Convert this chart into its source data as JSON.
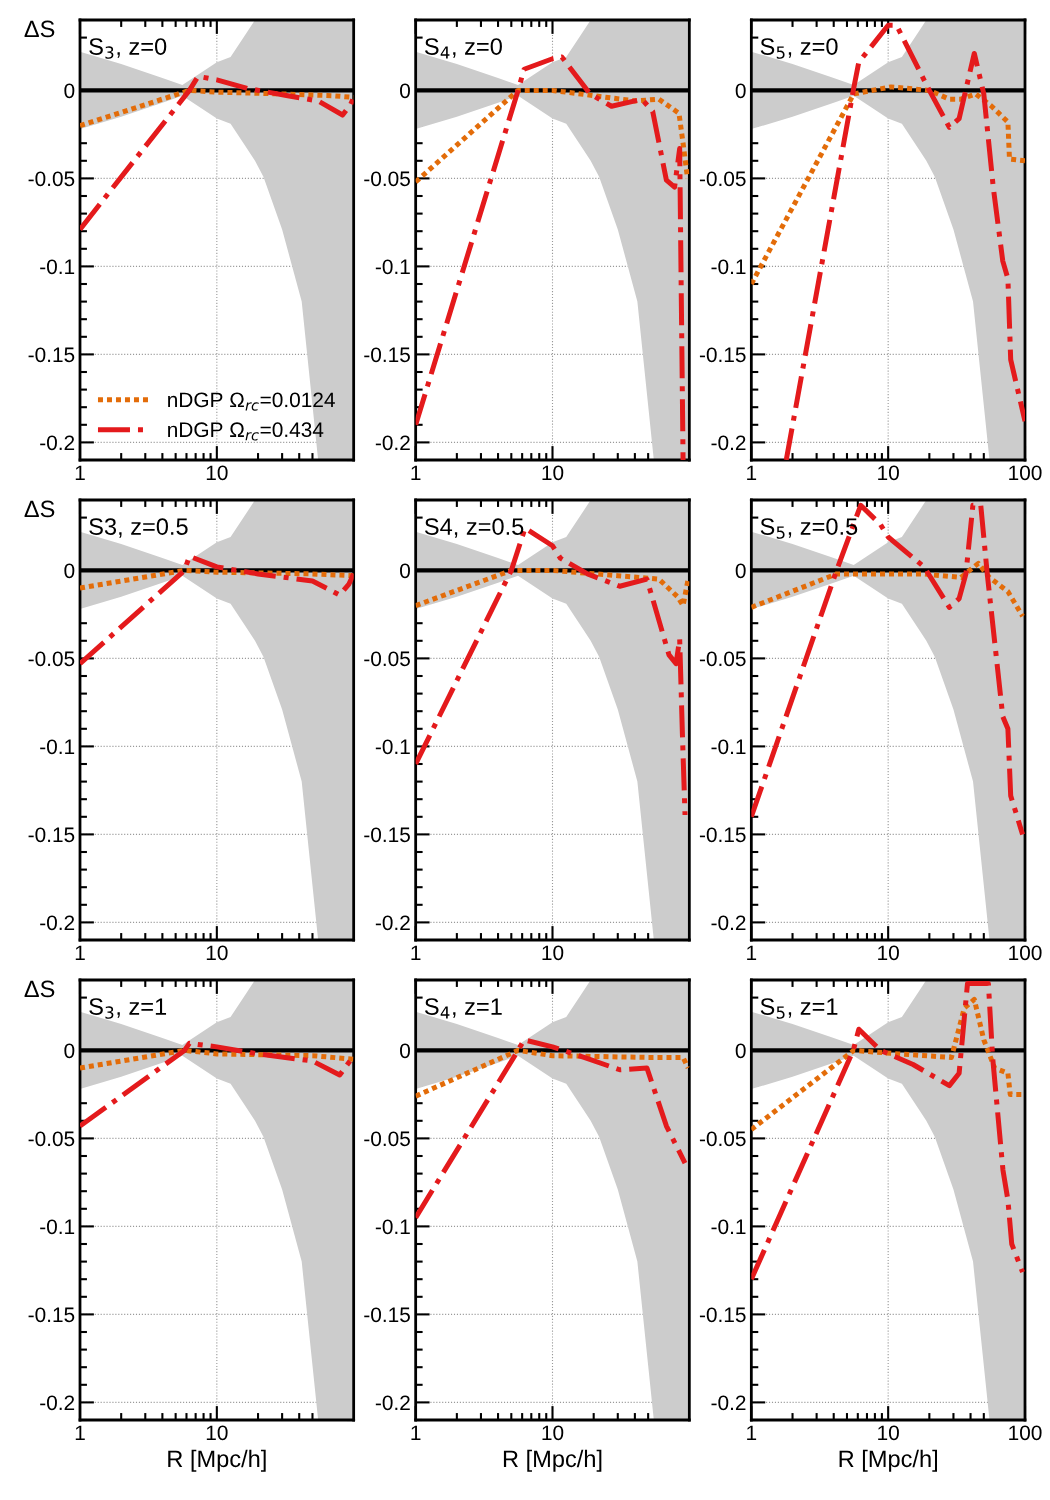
{
  "chart_data": [
    {
      "type": "line",
      "title": "S$_{3}$, z=0",
      "ylabel": "ΔS",
      "log": "x",
      "grid": true,
      "legend": "bottom",
      "xlim": [
        1,
        100
      ],
      "ylim": [
        -0.21,
        0.04
      ],
      "xticks": [
        1,
        10
      ],
      "yticks": [
        -0.2,
        -0.15,
        -0.1,
        -0.05,
        0
      ],
      "series": [
        {
          "color": "#000000",
          "line_style": "solid",
          "x": [
            1,
            2,
            4,
            5.6,
            7,
            10,
            12.6,
            16.6,
            19,
            21.9,
            30,
            41.7,
            55,
            100
          ],
          "values": [
            0,
            0,
            0,
            0,
            0,
            0,
            0,
            0,
            0,
            0,
            0,
            0,
            0,
            0
          ],
          "lower": [
            -0.022,
            -0.015,
            -0.007,
            -0.003,
            -0.008,
            -0.016,
            -0.019,
            -0.033,
            -0.04,
            -0.049,
            -0.079,
            -0.12,
            -0.21,
            -0.21
          ],
          "upper": [
            0.022,
            0.015,
            0.007,
            0.003,
            0.008,
            0.016,
            0.019,
            0.033,
            0.04,
            0.04,
            0.04,
            0.04,
            0.04,
            0.04
          ]
        },
        {
          "name": "nDGP Ω$_{rc}$=0.0124",
          "color": "#e36c09",
          "line_style": "dotted",
          "x": [
            1,
            6.3,
            10,
            30,
            70,
            100
          ],
          "values": [
            -0.02,
            0,
            -0.001,
            -0.002,
            -0.003,
            -0.004
          ]
        },
        {
          "name": "nDGP Ω$_{rc}$=0.434",
          "color": "#e41a1c",
          "line_style": "dashdot",
          "x": [
            1,
            6.3,
            7.3,
            10,
            17,
            33,
            55,
            83,
            95,
            100
          ],
          "values": [
            -0.079,
            0,
            0.008,
            0.006,
            0.001,
            -0.003,
            -0.006,
            -0.014,
            -0.008,
            -0.004
          ]
        }
      ]
    },
    {
      "type": "line",
      "title": "S$_{4}$, z=0",
      "log": "x",
      "grid": true,
      "xlim": [
        1,
        100
      ],
      "ylim": [
        -0.21,
        0.04
      ],
      "xticks": [
        1,
        10
      ],
      "yticks": [
        -0.2,
        -0.15,
        -0.1,
        -0.05,
        0
      ],
      "series": [
        {
          "color": "#000000",
          "line_style": "solid",
          "x": [
            1,
            2,
            4,
            5.6,
            7,
            10,
            12.6,
            16.6,
            19,
            21.9,
            30,
            41.7,
            55,
            100
          ],
          "values": [
            0,
            0,
            0,
            0,
            0,
            0,
            0,
            0,
            0,
            0,
            0,
            0,
            0,
            0
          ],
          "lower": [
            -0.022,
            -0.015,
            -0.007,
            -0.003,
            -0.008,
            -0.016,
            -0.019,
            -0.033,
            -0.04,
            -0.049,
            -0.079,
            -0.12,
            -0.21,
            -0.21
          ],
          "upper": [
            0.022,
            0.015,
            0.007,
            0.003,
            0.008,
            0.016,
            0.019,
            0.033,
            0.04,
            0.04,
            0.04,
            0.04,
            0.04,
            0.04
          ]
        },
        {
          "color": "#e36c09",
          "line_style": "dotted",
          "x": [
            1,
            5.6,
            10,
            20,
            40,
            60,
            84,
            90,
            97
          ],
          "values": [
            -0.052,
            0,
            0,
            -0.003,
            -0.006,
            -0.005,
            -0.013,
            -0.03,
            -0.05
          ]
        },
        {
          "color": "#e41a1c",
          "line_style": "dashdot",
          "x": [
            1,
            5.6,
            6.2,
            10,
            11.7,
            18.8,
            27,
            45,
            54,
            68,
            78,
            85,
            90
          ],
          "values": [
            -0.19,
            0,
            0.012,
            0.018,
            0.019,
            -0.002,
            -0.009,
            -0.005,
            -0.012,
            -0.051,
            -0.055,
            -0.033,
            -0.21
          ]
        }
      ]
    },
    {
      "type": "line",
      "title": "S$_{5}$, z=0",
      "log": "x",
      "grid": true,
      "xlim": [
        1,
        100
      ],
      "ylim": [
        -0.21,
        0.04
      ],
      "xticks": [
        1,
        10,
        100
      ],
      "yticks": [
        -0.2,
        -0.15,
        -0.1,
        -0.05,
        0
      ],
      "series": [
        {
          "color": "#000000",
          "line_style": "solid",
          "x": [
            1,
            2,
            4,
            5.6,
            7,
            10,
            12.6,
            16.6,
            19,
            21.9,
            30,
            41.7,
            55,
            100
          ],
          "values": [
            0,
            0,
            0,
            0,
            0,
            0,
            0,
            0,
            0,
            0,
            0,
            0,
            0,
            0
          ],
          "lower": [
            -0.022,
            -0.015,
            -0.007,
            -0.003,
            -0.008,
            -0.016,
            -0.019,
            -0.033,
            -0.04,
            -0.049,
            -0.079,
            -0.12,
            -0.21,
            -0.21
          ],
          "upper": [
            0.022,
            0.015,
            0.007,
            0.003,
            0.008,
            0.016,
            0.019,
            0.033,
            0.04,
            0.04,
            0.04,
            0.04,
            0.04,
            0.04
          ]
        },
        {
          "color": "#e36c09",
          "line_style": "dotted",
          "x": [
            1,
            5.6,
            10.5,
            20,
            28,
            34,
            43.6,
            57,
            75,
            77,
            100
          ],
          "values": [
            -0.11,
            -0.002,
            0.002,
            0,
            -0.005,
            -0.005,
            -0.002,
            -0.009,
            -0.018,
            -0.039,
            -0.04
          ]
        },
        {
          "color": "#e41a1c",
          "line_style": "dashdot",
          "x": [
            1.8,
            5.56,
            6.1,
            10,
            11.5,
            20,
            28,
            33,
            42.6,
            50,
            58.6,
            68.8,
            75,
            78.6,
            100
          ],
          "values": [
            -0.21,
            0,
            0.016,
            0.037,
            0.037,
            0,
            -0.021,
            -0.016,
            0.021,
            -0.002,
            -0.055,
            -0.097,
            -0.107,
            -0.153,
            -0.188
          ]
        }
      ]
    },
    {
      "type": "line",
      "title": "S3, z=0.5",
      "ylabel": "ΔS",
      "log": "x",
      "grid": true,
      "xlim": [
        1,
        100
      ],
      "ylim": [
        -0.21,
        0.04
      ],
      "xticks": [
        1,
        10
      ],
      "yticks": [
        -0.2,
        -0.15,
        -0.1,
        -0.05,
        0
      ],
      "series": [
        {
          "color": "#000000",
          "line_style": "solid",
          "x": [
            1,
            2,
            4,
            5.6,
            7,
            10,
            12.6,
            16.6,
            19,
            21.9,
            30,
            41.7,
            55,
            100
          ],
          "values": [
            0,
            0,
            0,
            0,
            0,
            0,
            0,
            0,
            0,
            0,
            0,
            0,
            0,
            0
          ],
          "lower": [
            -0.022,
            -0.015,
            -0.007,
            -0.003,
            -0.008,
            -0.016,
            -0.019,
            -0.033,
            -0.04,
            -0.049,
            -0.079,
            -0.12,
            -0.21,
            -0.21
          ],
          "upper": [
            0.022,
            0.015,
            0.007,
            0.003,
            0.008,
            0.016,
            0.019,
            0.033,
            0.04,
            0.04,
            0.04,
            0.04,
            0.04,
            0.04
          ]
        },
        {
          "color": "#e36c09",
          "line_style": "dotted",
          "x": [
            1,
            5.8,
            10,
            50,
            100
          ],
          "values": [
            -0.01,
            0,
            -0.001,
            -0.002,
            -0.003
          ]
        },
        {
          "color": "#e41a1c",
          "line_style": "dashdot",
          "x": [
            1,
            5.8,
            6.3,
            10,
            20,
            50,
            79,
            92,
            100
          ],
          "values": [
            -0.053,
            0,
            0.008,
            0.002,
            -0.002,
            -0.006,
            -0.014,
            -0.008,
            -0.002
          ]
        }
      ]
    },
    {
      "type": "line",
      "title": "S4, z=0.5",
      "log": "x",
      "grid": true,
      "xlim": [
        1,
        100
      ],
      "ylim": [
        -0.21,
        0.04
      ],
      "xticks": [
        1,
        10
      ],
      "yticks": [
        -0.2,
        -0.15,
        -0.1,
        -0.05,
        0
      ],
      "series": [
        {
          "color": "#000000",
          "line_style": "solid",
          "x": [
            1,
            2,
            4,
            5.6,
            7,
            10,
            12.6,
            16.6,
            19,
            21.9,
            30,
            41.7,
            55,
            100
          ],
          "values": [
            0,
            0,
            0,
            0,
            0,
            0,
            0,
            0,
            0,
            0,
            0,
            0,
            0,
            0
          ],
          "lower": [
            -0.022,
            -0.015,
            -0.007,
            -0.003,
            -0.008,
            -0.016,
            -0.019,
            -0.033,
            -0.04,
            -0.049,
            -0.079,
            -0.12,
            -0.21,
            -0.21
          ],
          "upper": [
            0.022,
            0.015,
            0.007,
            0.003,
            0.008,
            0.016,
            0.019,
            0.033,
            0.04,
            0.04,
            0.04,
            0.04,
            0.04,
            0.04
          ]
        },
        {
          "color": "#e36c09",
          "line_style": "dotted",
          "x": [
            1,
            5,
            10,
            30,
            60,
            82,
            90,
            98
          ],
          "values": [
            -0.02,
            0,
            0,
            -0.003,
            -0.005,
            -0.015,
            -0.02,
            -0.005
          ]
        },
        {
          "color": "#e41a1c",
          "line_style": "dashdot",
          "x": [
            1,
            5,
            6.3,
            10,
            11.4,
            18,
            31,
            49,
            71,
            80,
            85,
            89,
            93
          ],
          "values": [
            -0.11,
            0,
            0.024,
            0.014,
            0.007,
            -0.002,
            -0.009,
            -0.005,
            -0.048,
            -0.053,
            -0.039,
            -0.093,
            -0.139
          ]
        }
      ]
    },
    {
      "type": "line",
      "title": "S$_{5}$, z=0.5",
      "log": "x",
      "grid": true,
      "xlim": [
        1,
        100
      ],
      "ylim": [
        -0.21,
        0.04
      ],
      "xticks": [
        1,
        10,
        100
      ],
      "yticks": [
        -0.2,
        -0.15,
        -0.1,
        -0.05,
        0
      ],
      "series": [
        {
          "color": "#000000",
          "line_style": "solid",
          "x": [
            1,
            2,
            4,
            5.6,
            7,
            10,
            12.6,
            16.6,
            19,
            21.9,
            30,
            41.7,
            55,
            100
          ],
          "values": [
            0,
            0,
            0,
            0,
            0,
            0,
            0,
            0,
            0,
            0,
            0,
            0,
            0,
            0
          ],
          "lower": [
            -0.022,
            -0.015,
            -0.007,
            -0.003,
            -0.008,
            -0.016,
            -0.019,
            -0.033,
            -0.04,
            -0.049,
            -0.079,
            -0.12,
            -0.21,
            -0.21
          ],
          "upper": [
            0.022,
            0.015,
            0.007,
            0.003,
            0.008,
            0.016,
            0.019,
            0.033,
            0.04,
            0.04,
            0.04,
            0.04,
            0.04,
            0.04
          ]
        },
        {
          "color": "#e36c09",
          "line_style": "dotted",
          "x": [
            1,
            4.2,
            8.8,
            18,
            34,
            45.6,
            55,
            75,
            96
          ],
          "values": [
            -0.021,
            -0.002,
            -0.002,
            -0.002,
            -0.004,
            0.004,
            -0.004,
            -0.012,
            -0.026
          ]
        },
        {
          "color": "#e41a1c",
          "line_style": "dashdot",
          "x": [
            1,
            4.2,
            6.3,
            8.8,
            10,
            18.3,
            28,
            33,
            37,
            41.6,
            47.5,
            53,
            68.8,
            75,
            78.6,
            96
          ],
          "values": [
            -0.14,
            0,
            0.037,
            0.026,
            0.019,
            0.002,
            -0.021,
            -0.016,
            -0.002,
            0.037,
            0.037,
            -0.002,
            -0.083,
            -0.09,
            -0.128,
            -0.15
          ]
        }
      ]
    },
    {
      "type": "line",
      "title": "S$_{3}$, z=1",
      "xlabel": "R [Mpc/h]",
      "ylabel": "ΔS",
      "log": "x",
      "grid": true,
      "xlim": [
        1,
        100
      ],
      "ylim": [
        -0.21,
        0.04
      ],
      "xticks": [
        1,
        10
      ],
      "yticks": [
        -0.2,
        -0.15,
        -0.1,
        -0.05,
        0
      ],
      "series": [
        {
          "color": "#000000",
          "line_style": "solid",
          "x": [
            1,
            2,
            4,
            5.6,
            7,
            10,
            12.6,
            16.6,
            19,
            21.9,
            30,
            41.7,
            55,
            100
          ],
          "values": [
            0,
            0,
            0,
            0,
            0,
            0,
            0,
            0,
            0,
            0,
            0,
            0,
            0,
            0
          ],
          "lower": [
            -0.022,
            -0.015,
            -0.007,
            -0.003,
            -0.008,
            -0.016,
            -0.019,
            -0.033,
            -0.04,
            -0.049,
            -0.079,
            -0.12,
            -0.21,
            -0.21
          ],
          "upper": [
            0.022,
            0.015,
            0.007,
            0.003,
            0.008,
            0.016,
            0.019,
            0.033,
            0.04,
            0.04,
            0.04,
            0.04,
            0.04,
            0.04
          ]
        },
        {
          "color": "#e36c09",
          "line_style": "dotted",
          "x": [
            1,
            5.8,
            10,
            50,
            100
          ],
          "values": [
            -0.01,
            0,
            -0.002,
            -0.003,
            -0.005
          ]
        },
        {
          "color": "#e41a1c",
          "line_style": "dashdot",
          "x": [
            1,
            5.8,
            6.3,
            10,
            20,
            50,
            79,
            94,
            100
          ],
          "values": [
            -0.043,
            0,
            0.004,
            0.002,
            -0.002,
            -0.006,
            -0.014,
            -0.006,
            -0.004
          ]
        }
      ]
    },
    {
      "type": "line",
      "title": "S$_{4}$, z=1",
      "xlabel": "R [Mpc/h]",
      "log": "x",
      "grid": true,
      "xlim": [
        1,
        100
      ],
      "ylim": [
        -0.21,
        0.04
      ],
      "xticks": [
        1,
        10
      ],
      "yticks": [
        -0.2,
        -0.15,
        -0.1,
        -0.05,
        0
      ],
      "series": [
        {
          "color": "#000000",
          "line_style": "solid",
          "x": [
            1,
            2,
            4,
            5.6,
            7,
            10,
            12.6,
            16.6,
            19,
            21.9,
            30,
            41.7,
            55,
            100
          ],
          "values": [
            0,
            0,
            0,
            0,
            0,
            0,
            0,
            0,
            0,
            0,
            0,
            0,
            0,
            0
          ],
          "lower": [
            -0.022,
            -0.015,
            -0.007,
            -0.003,
            -0.008,
            -0.016,
            -0.019,
            -0.033,
            -0.04,
            -0.049,
            -0.079,
            -0.12,
            -0.21,
            -0.21
          ],
          "upper": [
            0.022,
            0.015,
            0.007,
            0.003,
            0.008,
            0.016,
            0.019,
            0.033,
            0.04,
            0.04,
            0.04,
            0.04,
            0.04,
            0.04
          ]
        },
        {
          "color": "#e36c09",
          "line_style": "dotted",
          "x": [
            1,
            5.6,
            10,
            50,
            90,
            98
          ],
          "values": [
            -0.026,
            0,
            -0.003,
            -0.004,
            -0.004,
            -0.01
          ]
        },
        {
          "color": "#e41a1c",
          "line_style": "dashdot",
          "x": [
            1,
            5.6,
            6.2,
            10,
            17,
            31,
            49,
            68,
            93
          ],
          "values": [
            -0.095,
            0,
            0.006,
            0.002,
            -0.004,
            -0.011,
            -0.01,
            -0.043,
            -0.064
          ]
        }
      ]
    },
    {
      "type": "line",
      "title": "S$_{5}$, z=1",
      "xlabel": "R [Mpc/h]",
      "log": "x",
      "grid": true,
      "xlim": [
        1,
        100
      ],
      "ylim": [
        -0.21,
        0.04
      ],
      "xticks": [
        1,
        10,
        100
      ],
      "yticks": [
        -0.2,
        -0.15,
        -0.1,
        -0.05,
        0
      ],
      "series": [
        {
          "color": "#000000",
          "line_style": "solid",
          "x": [
            1,
            2,
            4,
            5.6,
            7,
            10,
            12.6,
            16.6,
            19,
            21.9,
            30,
            41.7,
            55,
            100
          ],
          "values": [
            0,
            0,
            0,
            0,
            0,
            0,
            0,
            0,
            0,
            0,
            0,
            0,
            0,
            0
          ],
          "lower": [
            -0.022,
            -0.015,
            -0.007,
            -0.003,
            -0.008,
            -0.016,
            -0.019,
            -0.033,
            -0.04,
            -0.049,
            -0.079,
            -0.12,
            -0.21,
            -0.21
          ],
          "upper": [
            0.022,
            0.015,
            0.007,
            0.003,
            0.008,
            0.016,
            0.019,
            0.033,
            0.04,
            0.04,
            0.04,
            0.04,
            0.04,
            0.04
          ]
        },
        {
          "color": "#e36c09",
          "line_style": "dotted",
          "x": [
            1,
            5.6,
            12,
            29,
            36,
            42.6,
            50,
            60,
            75,
            78,
            96
          ],
          "values": [
            -0.045,
            0,
            -0.002,
            -0.004,
            0.024,
            0.029,
            0.006,
            -0.01,
            -0.013,
            -0.025,
            -0.025
          ]
        },
        {
          "color": "#e41a1c",
          "line_style": "dashdot",
          "x": [
            1,
            5.56,
            6.1,
            8.8,
            15.2,
            28,
            33,
            38,
            54,
            58,
            69,
            75,
            80,
            96
          ],
          "values": [
            -0.13,
            0,
            0.012,
            0,
            -0.008,
            -0.02,
            -0.013,
            0.038,
            0.038,
            -0.004,
            -0.068,
            -0.085,
            -0.11,
            -0.126
          ]
        }
      ]
    }
  ]
}
